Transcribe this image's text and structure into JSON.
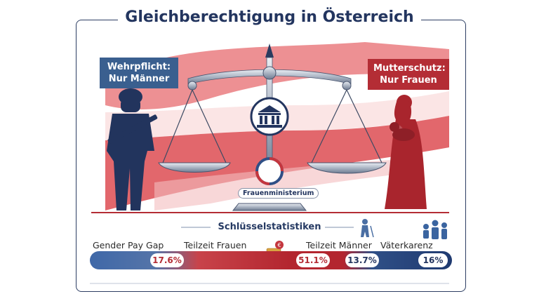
{
  "title": "Gleichberechtigung in Österreich",
  "tags": {
    "left": "Wehrpflicht: Nur Männer",
    "right": "Mutterschutz: Nur Frauen"
  },
  "scale_label": "Frauenministerium",
  "section_title": "Schlüsselstatistiken",
  "stats": [
    {
      "label": "Gender Pay Gap",
      "value": "17.6%"
    },
    {
      "label": "Teilzeit Frauen",
      "value": "51.1%"
    },
    {
      "label": "Teilzeit Männer",
      "value": "13.7%"
    },
    {
      "label": "Väterkarenz",
      "value": "16%"
    }
  ],
  "icons": {
    "soldier": "soldier-silhouette",
    "mother": "mother-with-baby-silhouette",
    "building": "government-building-icon",
    "coins": "euro-coins-icon",
    "elder": "elderly-person-icon",
    "family": "family-icon"
  },
  "colors": {
    "blue": "#2f4f86",
    "red": "#b42d35",
    "navy": "#23355f"
  }
}
